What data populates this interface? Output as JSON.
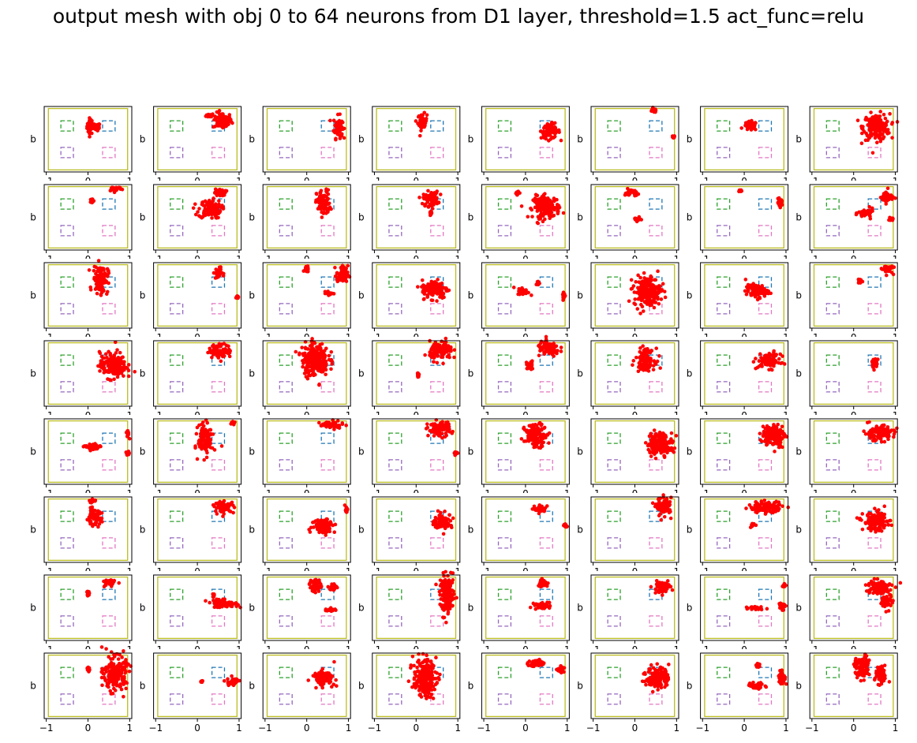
{
  "figure": {
    "title": "output mesh with obj 0 to 64 neurons from D1 layer, threshold=1.5 act_func=relu"
  },
  "chart_data": {
    "type": "scatter",
    "layout": "8x8 grid of small multiples",
    "ylabel": "b",
    "xticks": [
      "−1",
      "0",
      "1"
    ],
    "xlim": [
      -1.05,
      1.05
    ],
    "ylim": [
      -0.8,
      0.8
    ],
    "grid": false,
    "colors": {
      "points": "#ff0000",
      "boundary": "#bcbd22",
      "box_top_left": "#2ca02c",
      "box_top_right": "#1f77b4",
      "box_bottom_left": "#9467bd",
      "box_bottom_right": "#e377c2"
    },
    "reference_shapes": [
      {
        "name": "boundary",
        "x": [
          -0.95,
          0.95
        ],
        "y": [
          -0.75,
          0.75
        ],
        "style": "solid"
      },
      {
        "name": "box_top_left",
        "x": [
          -0.65,
          -0.35
        ],
        "y": [
          0.2,
          0.45
        ],
        "style": "dashed"
      },
      {
        "name": "box_top_right",
        "x": [
          0.35,
          0.65
        ],
        "y": [
          0.2,
          0.45
        ],
        "style": "dashed"
      },
      {
        "name": "box_bottom_left",
        "x": [
          -0.65,
          -0.35
        ],
        "y": [
          -0.45,
          -0.2
        ],
        "style": "dashed"
      },
      {
        "name": "box_bottom_right",
        "x": [
          0.35,
          0.65
        ],
        "y": [
          -0.45,
          -0.2
        ],
        "style": "dashed"
      }
    ],
    "panels": [
      {
        "clusters": [
          [
            0.05,
            0.32,
            0.08,
            0.22
          ],
          [
            0.2,
            0.3,
            0.1,
            0.1
          ]
        ]
      },
      {
        "clusters": [
          [
            0.6,
            0.45,
            0.25,
            0.22
          ],
          [
            0.3,
            0.58,
            0.1,
            0.05
          ]
        ]
      },
      {
        "clusters": [
          [
            0.75,
            0.3,
            0.12,
            0.3
          ]
        ]
      },
      {
        "clusters": [
          [
            0.15,
            0.42,
            0.12,
            0.22
          ]
        ]
      },
      {
        "clusters": [
          [
            0.6,
            0.2,
            0.25,
            0.2
          ]
        ]
      },
      {
        "clusters": [
          [
            0.45,
            0.7,
            0.1,
            0.05
          ],
          [
            0.92,
            0.05,
            0.04,
            0.04
          ]
        ]
      },
      {
        "clusters": [
          [
            0.15,
            0.32,
            0.18,
            0.12
          ]
        ]
      },
      {
        "clusters": [
          [
            0.55,
            0.3,
            0.35,
            0.35
          ]
        ]
      },
      {
        "clusters": [
          [
            0.1,
            0.4,
            0.05,
            0.07
          ],
          [
            0.65,
            0.7,
            0.18,
            0.07
          ]
        ]
      },
      {
        "clusters": [
          [
            0.3,
            0.2,
            0.3,
            0.25
          ],
          [
            0.55,
            0.6,
            0.15,
            0.1
          ]
        ]
      },
      {
        "clusters": [
          [
            0.4,
            0.35,
            0.18,
            0.35
          ]
        ]
      },
      {
        "clusters": [
          [
            0.35,
            0.45,
            0.2,
            0.2
          ],
          [
            0.35,
            0.12,
            0.05,
            0.05
          ]
        ]
      },
      {
        "clusters": [
          [
            0.5,
            0.25,
            0.35,
            0.3
          ],
          [
            -0.2,
            0.6,
            0.05,
            0.05
          ]
        ]
      },
      {
        "clusters": [
          [
            -0.1,
            0.6,
            0.15,
            0.1
          ],
          [
            0.05,
            -0.05,
            0.1,
            0.05
          ]
        ]
      },
      {
        "clusters": [
          [
            -0.1,
            0.65,
            0.05,
            0.03
          ],
          [
            0.85,
            0.35,
            0.08,
            0.1
          ]
        ]
      },
      {
        "clusters": [
          [
            0.3,
            0.1,
            0.2,
            0.12
          ],
          [
            0.8,
            0.5,
            0.15,
            0.18
          ],
          [
            0.9,
            -0.05,
            0.05,
            0.04
          ]
        ]
      },
      {
        "clusters": [
          [
            0.3,
            0.4,
            0.2,
            0.38
          ]
        ]
      },
      {
        "clusters": [
          [
            0.5,
            0.55,
            0.1,
            0.15
          ],
          [
            0.95,
            -0.05,
            0.04,
            0.04
          ]
        ]
      },
      {
        "clusters": [
          [
            0.85,
            0.5,
            0.15,
            0.25
          ],
          [
            0.55,
            0.05,
            0.1,
            0.05
          ],
          [
            0,
            0.65,
            0.05,
            0.08
          ]
        ]
      },
      {
        "clusters": [
          [
            0.45,
            0.15,
            0.35,
            0.25
          ]
        ]
      },
      {
        "clusters": [
          [
            -0.05,
            0.1,
            0.15,
            0.1
          ],
          [
            0.3,
            0.3,
            0.05,
            0.05
          ],
          [
            0.92,
            0,
            0.04,
            0.12
          ]
        ]
      },
      {
        "clusters": [
          [
            0.3,
            0.1,
            0.35,
            0.4
          ]
        ]
      },
      {
        "clusters": [
          [
            0.3,
            0.1,
            0.3,
            0.18
          ]
        ]
      },
      {
        "clusters": [
          [
            0.15,
            0.35,
            0.05,
            0.07
          ],
          [
            0.8,
            0.65,
            0.15,
            0.12
          ]
        ]
      },
      {
        "clusters": [
          [
            0.6,
            0.2,
            0.35,
            0.35
          ]
        ]
      },
      {
        "clusters": [
          [
            0.55,
            0.55,
            0.3,
            0.18
          ]
        ]
      },
      {
        "clusters": [
          [
            0.2,
            0.35,
            0.35,
            0.45
          ]
        ]
      },
      {
        "clusters": [
          [
            0.6,
            0.55,
            0.3,
            0.25
          ],
          [
            0.05,
            -0.05,
            0.05,
            0.05
          ]
        ]
      },
      {
        "clusters": [
          [
            0.55,
            0.6,
            0.3,
            0.2
          ],
          [
            0.1,
            0.2,
            0.1,
            0.12
          ]
        ]
      },
      {
        "clusters": [
          [
            0.25,
            0.35,
            0.25,
            0.28
          ]
        ]
      },
      {
        "clusters": [
          [
            0.6,
            0.3,
            0.3,
            0.2
          ]
        ]
      },
      {
        "clusters": [
          [
            0.5,
            0.25,
            0.1,
            0.15
          ]
        ]
      },
      {
        "clusters": [
          [
            0.1,
            0.1,
            0.2,
            0.1
          ],
          [
            0.95,
            0.45,
            0.04,
            0.1
          ],
          [
            0.95,
            -0.05,
            0.05,
            0.05
          ]
        ]
      },
      {
        "clusters": [
          [
            0.2,
            0.3,
            0.2,
            0.4
          ],
          [
            0.85,
            0.7,
            0.05,
            0.05
          ]
        ]
      },
      {
        "clusters": [
          [
            0.6,
            0.65,
            0.3,
            0.1
          ]
        ]
      },
      {
        "clusters": [
          [
            0.55,
            0.55,
            0.3,
            0.2
          ],
          [
            0.95,
            -0.05,
            0.04,
            0.04
          ]
        ]
      },
      {
        "clusters": [
          [
            0.25,
            0.4,
            0.3,
            0.3
          ]
        ]
      },
      {
        "clusters": [
          [
            0.6,
            0.2,
            0.35,
            0.3
          ]
        ]
      },
      {
        "clusters": [
          [
            0.7,
            0.4,
            0.3,
            0.3
          ]
        ]
      },
      {
        "clusters": [
          [
            0.6,
            0.45,
            0.4,
            0.2
          ]
        ]
      },
      {
        "clusters": [
          [
            0.15,
            0.3,
            0.2,
            0.2
          ],
          [
            0.1,
            0.7,
            0.1,
            0.05
          ]
        ]
      },
      {
        "clusters": [
          [
            0.65,
            0.55,
            0.25,
            0.15
          ]
        ]
      },
      {
        "clusters": [
          [
            0.4,
            0.1,
            0.3,
            0.2
          ],
          [
            0.95,
            0.5,
            0.04,
            0.1
          ]
        ]
      },
      {
        "clusters": [
          [
            0.65,
            0.2,
            0.25,
            0.2
          ]
        ]
      },
      {
        "clusters": [
          [
            0.35,
            0.5,
            0.15,
            0.1
          ],
          [
            0.95,
            0.1,
            0.05,
            0.05
          ]
        ]
      },
      {
        "clusters": [
          [
            0.7,
            0.55,
            0.2,
            0.25
          ]
        ]
      },
      {
        "clusters": [
          [
            0.5,
            0.55,
            0.45,
            0.15
          ],
          [
            0.2,
            0.1,
            0.05,
            0.05
          ]
        ]
      },
      {
        "clusters": [
          [
            0.55,
            0.2,
            0.35,
            0.25
          ]
        ]
      },
      {
        "clusters": [
          [
            0,
            0.35,
            0.05,
            0.12
          ],
          [
            0.5,
            0.6,
            0.15,
            0.1
          ]
        ]
      },
      {
        "clusters": [
          [
            0.6,
            0.1,
            0.4,
            0.1
          ],
          [
            0.4,
            0.3,
            0.05,
            0.05
          ]
        ]
      },
      {
        "clusters": [
          [
            0.2,
            0.55,
            0.15,
            0.18
          ],
          [
            0.65,
            0.5,
            0.1,
            0.1
          ],
          [
            0.55,
            -0.05,
            0.15,
            0.04
          ]
        ]
      },
      {
        "clusters": [
          [
            0.75,
            0.3,
            0.2,
            0.5
          ]
        ]
      },
      {
        "clusters": [
          [
            0.4,
            0.6,
            0.15,
            0.1
          ],
          [
            0.4,
            0.05,
            0.2,
            0.1
          ]
        ]
      },
      {
        "clusters": [
          [
            0.65,
            0.5,
            0.25,
            0.15
          ]
        ]
      },
      {
        "clusters": [
          [
            0.3,
            0,
            0.2,
            0.05
          ],
          [
            0.9,
            0.05,
            0.08,
            0.12
          ],
          [
            0.95,
            0.55,
            0.04,
            0.05
          ]
        ]
      },
      {
        "clusters": [
          [
            0.6,
            0.5,
            0.35,
            0.2
          ],
          [
            0.8,
            0.15,
            0.15,
            0.2
          ]
        ]
      },
      {
        "clusters": [
          [
            0.65,
            0.3,
            0.3,
            0.45
          ],
          [
            0,
            0.4,
            0.05,
            0.05
          ]
        ]
      },
      {
        "clusters": [
          [
            0.85,
            0.1,
            0.15,
            0.12
          ],
          [
            0.1,
            0.1,
            0.03,
            0.03
          ]
        ]
      },
      {
        "clusters": [
          [
            0.4,
            0.2,
            0.3,
            0.2
          ]
        ]
      },
      {
        "clusters": [
          [
            0.2,
            0.2,
            0.3,
            0.5
          ]
        ]
      },
      {
        "clusters": [
          [
            0.25,
            0.55,
            0.2,
            0.1
          ],
          [
            0.85,
            0.4,
            0.1,
            0.1
          ]
        ]
      },
      {
        "clusters": [
          [
            0.55,
            0.2,
            0.3,
            0.3
          ]
        ]
      },
      {
        "clusters": [
          [
            0.3,
            0,
            0.25,
            0.08
          ],
          [
            0.9,
            0.2,
            0.1,
            0.2
          ],
          [
            0.35,
            0.5,
            0.05,
            0.05
          ]
        ]
      },
      {
        "clusters": [
          [
            0.2,
            0.45,
            0.2,
            0.3
          ],
          [
            0.65,
            0.25,
            0.15,
            0.25
          ]
        ]
      }
    ]
  }
}
